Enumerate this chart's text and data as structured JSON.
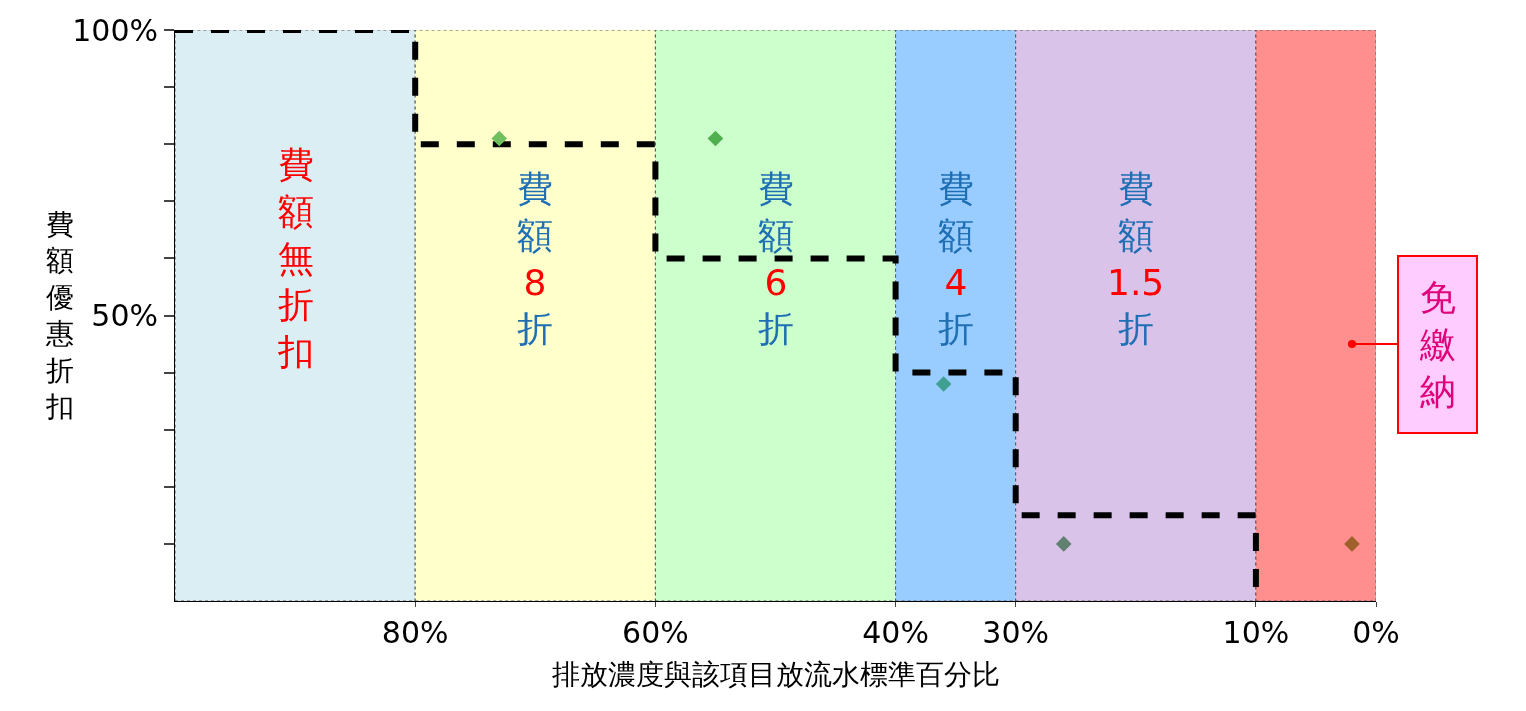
{
  "chart_data": {
    "type": "step",
    "xlabel": "排放濃度與該項目放流水標準百分比",
    "ylabel": "費額優惠折扣",
    "x": [
      100,
      80,
      60,
      40,
      30,
      10
    ],
    "xlim": [
      100,
      0
    ],
    "xticks": [
      {
        "value": 80,
        "label": "80%"
      },
      {
        "value": 60,
        "label": "60%"
      },
      {
        "value": 40,
        "label": "40%"
      },
      {
        "value": 30,
        "label": "30%"
      },
      {
        "value": 10,
        "label": "10%"
      },
      {
        "value": 0,
        "label": "0%"
      }
    ],
    "ylim": [
      0,
      100
    ],
    "yticks": [
      {
        "value": 100,
        "label": "100%"
      },
      {
        "value": 90,
        "label": null
      },
      {
        "value": 80,
        "label": null
      },
      {
        "value": 70,
        "label": null
      },
      {
        "value": 60,
        "label": null
      },
      {
        "value": 50,
        "label": "50%"
      },
      {
        "value": 40,
        "label": null
      },
      {
        "value": 30,
        "label": null
      },
      {
        "value": 20,
        "label": null
      },
      {
        "value": 10,
        "label": null
      }
    ],
    "series": [
      {
        "color": "#000000",
        "values": [
          100,
          80,
          60,
          40,
          15,
          0
        ],
        "line_style": "dashed",
        "marker": "none"
      },
      {
        "type": "scatter",
        "x": [
          73,
          55,
          36,
          26,
          2
        ],
        "values": [
          81,
          81,
          38,
          10,
          10
        ],
        "colors": [
          "#70c060",
          "#50b050",
          "#40a090",
          "#608070",
          "#a0602a"
        ],
        "marker": "diamond"
      }
    ],
    "bands": [
      {
        "axis": "x",
        "from": 100,
        "to": 80,
        "label": "費額無折扣",
        "color": "#dbeef4"
      },
      {
        "axis": "x",
        "from": 80,
        "to": 60,
        "label": "費額8折",
        "color": "#ffffcc"
      },
      {
        "axis": "x",
        "from": 60,
        "to": 40,
        "label": "費額6折",
        "color": "#ccffcc"
      },
      {
        "axis": "x",
        "from": 40,
        "to": 30,
        "label": "費額4折",
        "color": "#99ccff"
      },
      {
        "axis": "x",
        "from": 30,
        "to": 10,
        "label": "費額1.5折",
        "color": "#d9c3e9"
      },
      {
        "axis": "x",
        "from": 10,
        "to": 0,
        "label": null,
        "color": "#ff8f8f"
      }
    ],
    "annotations": [
      {
        "text": "免繳納",
        "x": 2,
        "y": 45
      }
    ],
    "grid": false
  }
}
